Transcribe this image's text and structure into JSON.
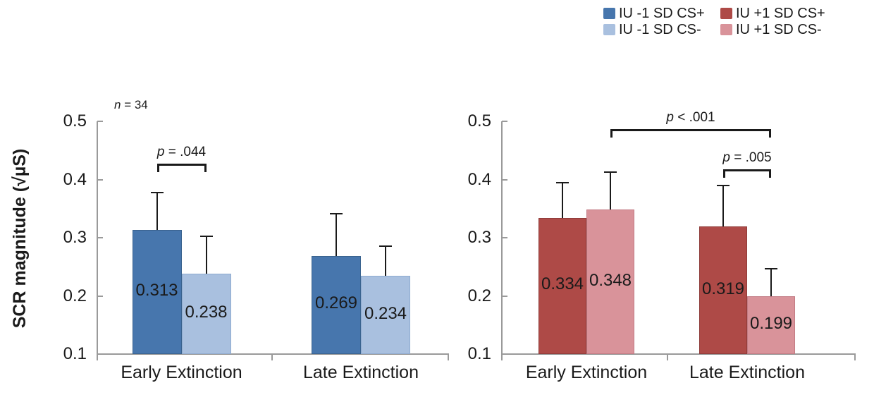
{
  "legend": {
    "position": "top-right",
    "rows": [
      [
        {
          "label": "IU -1 SD CS+",
          "color": "#4776AD"
        },
        {
          "label": "IU +1 SD CS+",
          "color": "#AE4A47"
        }
      ],
      [
        {
          "label": "IU -1 SD CS-",
          "color": "#A9C0DF"
        },
        {
          "label": "IU +1 SD CS-",
          "color": "#D9939A"
        }
      ]
    ]
  },
  "chart_data": [
    {
      "type": "bar",
      "panel": "IU -1 SD",
      "title": "",
      "xlabel": "",
      "ylabel": "SCR magnitude (√µS)",
      "categories": [
        "Early Extinction",
        "Late Extinction"
      ],
      "series": [
        {
          "name": "IU -1 SD CS+",
          "color": "#4776AD",
          "border": "#3A638F",
          "values": [
            0.313,
            0.269
          ],
          "errors_up": [
            0.065,
            0.072
          ]
        },
        {
          "name": "IU -1 SD CS-",
          "color": "#A9C0DF",
          "border": "#8FABD0",
          "values": [
            0.238,
            0.234
          ],
          "errors_up": [
            0.064,
            0.051
          ]
        }
      ],
      "value_labels": [
        [
          "0.313",
          "0.269"
        ],
        [
          "0.238",
          "0.234"
        ]
      ],
      "ylim": [
        0.1,
        0.5
      ],
      "yticks": [
        0.5,
        0.4,
        0.3,
        0.2,
        0.1
      ],
      "grid": false,
      "annotation": {
        "sym": "n",
        "rest": " = 34",
        "label": "n = 34"
      },
      "significance": [
        {
          "label": "p = .044",
          "sym": "p",
          "rest": " = .044",
          "x1": [
            0,
            0
          ],
          "x2": [
            0,
            1
          ],
          "y": 0.427
        }
      ]
    },
    {
      "type": "bar",
      "panel": "IU +1 SD",
      "title": "",
      "xlabel": "",
      "ylabel": "SCR magnitude (√µS)",
      "categories": [
        "Early Extinction",
        "Late Extinction"
      ],
      "series": [
        {
          "name": "IU +1 SD CS+",
          "color": "#AE4A47",
          "border": "#8E3B39",
          "values": [
            0.334,
            0.319
          ],
          "errors_up": [
            0.061,
            0.071
          ]
        },
        {
          "name": "IU +1 SD CS-",
          "color": "#D9939A",
          "border": "#C27B84",
          "values": [
            0.348,
            0.199
          ],
          "errors_up": [
            0.065,
            0.048
          ]
        }
      ],
      "value_labels": [
        [
          "0.334",
          "0.319"
        ],
        [
          "0.348",
          "0.199"
        ]
      ],
      "ylim": [
        0.1,
        0.5
      ],
      "yticks": [
        0.5,
        0.4,
        0.3,
        0.2,
        0.1
      ],
      "grid": false,
      "significance": [
        {
          "label": "p < .001",
          "sym": "p",
          "rest": " < .001",
          "x1": [
            0,
            1
          ],
          "x2": [
            1,
            1
          ],
          "y": 0.487
        },
        {
          "label": "p = .005",
          "sym": "p",
          "rest": " = .005",
          "x1": [
            1,
            0
          ],
          "x2": [
            1,
            1
          ],
          "y": 0.418
        }
      ]
    }
  ]
}
